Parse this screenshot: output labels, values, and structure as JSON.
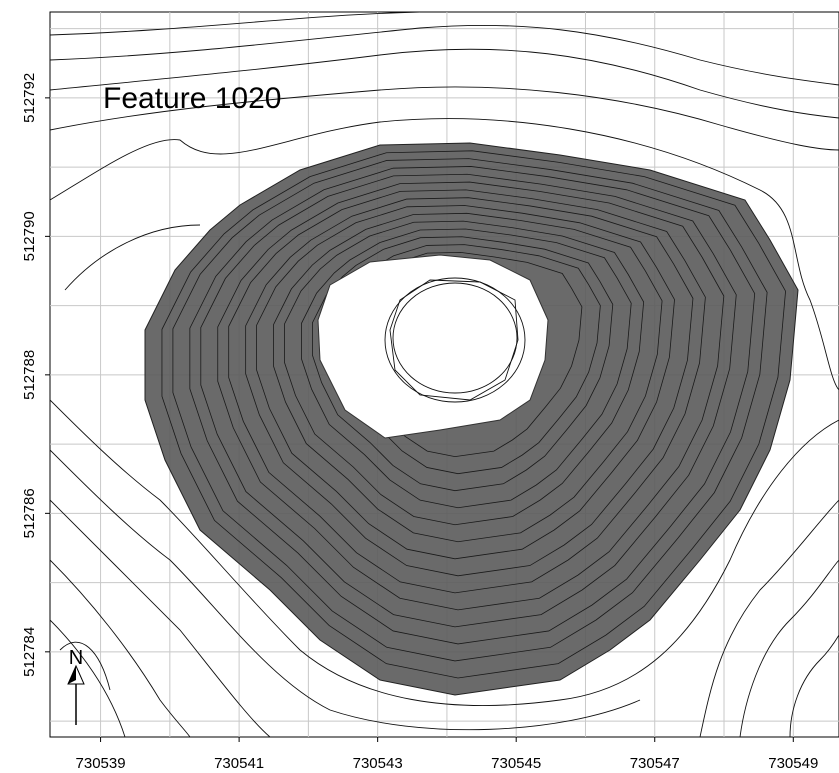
{
  "map": {
    "title": "Feature 1020",
    "north_label": "N",
    "xlim": [
      730538.27,
      730549.66
    ],
    "ylim": [
      512782.77,
      512793.24
    ],
    "xticks": [
      730539,
      730541,
      730543,
      730545,
      730547,
      730549
    ],
    "yticks": [
      512784,
      512786,
      512788,
      512790,
      512792
    ]
  }
}
